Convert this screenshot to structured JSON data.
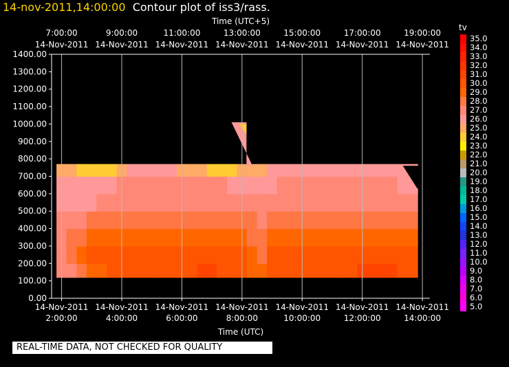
{
  "chart_data": {
    "type": "heatmap",
    "title_stamp": "14-nov-2011,14:00:00",
    "title": "Contour plot of iss3/rass.",
    "top_axis_label": "Time (UTC+5)",
    "xlabel": "Time (UTC)",
    "colorbar_label": "tv",
    "notice": "REAL-TIME DATA, NOT CHECKED FOR QUALITY",
    "ylim": [
      0,
      1400
    ],
    "xlim": [
      "14-Nov-2011 1:40:00",
      "14-Nov-2011 14:15:00"
    ],
    "y_ticks": [
      "0.00",
      "100.00",
      "200.00",
      "300.00",
      "400.00",
      "500.00",
      "600.00",
      "700.00",
      "800.00",
      "900.00",
      "1000.00",
      "1100.00",
      "1200.00",
      "1300.00",
      "1400.00"
    ],
    "bottom_ticks": [
      {
        "date": "14-Nov-2011",
        "time": "2:00:00"
      },
      {
        "date": "14-Nov-2011",
        "time": "4:00:00"
      },
      {
        "date": "14-Nov-2011",
        "time": "6:00:00"
      },
      {
        "date": "14-Nov-2011",
        "time": "8:00:00"
      },
      {
        "date": "14-Nov-2011",
        "time": "10:00:00"
      },
      {
        "date": "14-Nov-2011",
        "time": "12:00:00"
      },
      {
        "date": "14-Nov-2011",
        "time": "14:00:00"
      }
    ],
    "top_ticks": [
      {
        "time": "7:00:00",
        "date": "14-Nov-2011"
      },
      {
        "time": "9:00:00",
        "date": "14-Nov-2011"
      },
      {
        "time": "11:00:00",
        "date": "14-Nov-2011"
      },
      {
        "time": "13:00:00",
        "date": "14-Nov-2011"
      },
      {
        "time": "15:00:00",
        "date": "14-Nov-2011"
      },
      {
        "time": "17:00:00",
        "date": "14-Nov-2011"
      },
      {
        "time": "19:00:00",
        "date": "14-Nov-2011"
      }
    ],
    "colorbar": {
      "values": [
        "35.0",
        "34.0",
        "33.0",
        "32.0",
        "31.0",
        "30.0",
        "29.0",
        "28.0",
        "27.0",
        "26.0",
        "25.0",
        "24.0",
        "23.0",
        "22.0",
        "21.0",
        "20.0",
        "19.0",
        "18.0",
        "17.0",
        "16.0",
        "15.0",
        "14.0",
        "13.0",
        "12.0",
        "11.0",
        "10.0",
        "9.0",
        "8.0",
        "7.0",
        "6.0",
        "5.0"
      ],
      "colors": [
        "#ff0000",
        "#ff1000",
        "#ff2200",
        "#ff3300",
        "#ff4400",
        "#ff5500",
        "#ff6600",
        "#ff7744",
        "#ff8877",
        "#ff9999",
        "#ffaa66",
        "#ffcc33",
        "#ffee00",
        "#cc9900",
        "#bb9966",
        "#bbbbbb",
        "#229988",
        "#00bb99",
        "#00ccaa",
        "#0099dd",
        "#0066ff",
        "#1144ff",
        "#2233dd",
        "#5522ff",
        "#7722ff",
        "#9911ff",
        "#bb00ff",
        "#dd00ff",
        "#ee00ee",
        "#ff00dd",
        "#ff00ff"
      ]
    },
    "field": {
      "times_h": [
        2.0,
        2.33,
        2.67,
        3.0,
        3.33,
        3.67,
        4.0,
        4.33,
        4.67,
        5.0,
        5.33,
        5.67,
        6.0,
        6.33,
        6.67,
        7.0,
        7.33,
        7.67,
        8.0,
        8.33,
        8.67,
        9.0,
        9.33,
        9.67,
        10.0,
        10.33,
        10.67,
        11.0,
        11.33,
        11.67,
        12.0,
        12.33,
        12.67,
        13.0,
        13.33,
        13.67
      ],
      "heights": [
        150,
        250,
        350,
        450,
        550,
        650,
        750
      ],
      "tv": [
        [
          27,
          27,
          26.5,
          26.5,
          25.5,
          25.5,
          24.8
        ],
        [
          27,
          27.5,
          27.5,
          26.8,
          26,
          25.5,
          24.5
        ],
        [
          28,
          28.5,
          27.8,
          27,
          26,
          25.5,
          24
        ],
        [
          29,
          29.5,
          28.5,
          27.5,
          26.2,
          25.5,
          24
        ],
        [
          29,
          29.5,
          28.5,
          27.5,
          26.5,
          25.8,
          23.5
        ],
        [
          29.5,
          29.5,
          28.8,
          27.8,
          26.8,
          26,
          24
        ],
        [
          29.5,
          29.5,
          29,
          28,
          27,
          26.5,
          24.8
        ],
        [
          29.5,
          29.5,
          29,
          28,
          27,
          26.5,
          25.5
        ],
        [
          29.5,
          29.8,
          29,
          28.2,
          27.2,
          26.8,
          25.5
        ],
        [
          29.5,
          29.8,
          29.2,
          28.2,
          27.2,
          26.8,
          25.5
        ],
        [
          29.8,
          30,
          29.2,
          28.3,
          27.3,
          26.8,
          25.5
        ],
        [
          29.8,
          30,
          29.3,
          28.3,
          27.3,
          26.8,
          25.5
        ],
        [
          29.8,
          30,
          29.3,
          28.4,
          27.4,
          27,
          25.2
        ],
        [
          30.2,
          30,
          29.3,
          28.4,
          27.4,
          26.8,
          24.8
        ],
        [
          30.5,
          30,
          29.3,
          28.4,
          27.4,
          26.8,
          24.5
        ],
        [
          30.5,
          30,
          29.3,
          28.4,
          27.4,
          26.8,
          24.2
        ],
        [
          30,
          30,
          29.3,
          28.4,
          27.4,
          26.5,
          24
        ],
        [
          30,
          30,
          29.2,
          28.3,
          27.2,
          26.2,
          23.5
        ],
        [
          29.5,
          29.5,
          28.8,
          28,
          27,
          26,
          24.5
        ],
        [
          29,
          28.5,
          28,
          27.5,
          26.8,
          26,
          25
        ],
        [
          28.5,
          28.2,
          27.8,
          27.2,
          26.8,
          26,
          25.2
        ],
        [
          29.8,
          29.5,
          28.8,
          28,
          27,
          26.2,
          25.5
        ],
        [
          30,
          29.8,
          29,
          28.2,
          27.2,
          26.5,
          25.5
        ],
        [
          30.2,
          30,
          29.2,
          28.3,
          27.3,
          26.6,
          25.5
        ],
        [
          30.2,
          30,
          29.3,
          28.4,
          27.4,
          26.6,
          25.5
        ],
        [
          30.2,
          30,
          29.3,
          28.4,
          27.4,
          26.6,
          25.5
        ],
        [
          30.2,
          30,
          29.3,
          28.4,
          27.4,
          26.6,
          25.5
        ],
        [
          30.3,
          30,
          29.3,
          28.4,
          27.4,
          26.6,
          25.5
        ],
        [
          30.3,
          30.2,
          29.3,
          28.4,
          27.4,
          26.6,
          25.5
        ],
        [
          30.3,
          30.2,
          29.4,
          28.4,
          27.4,
          26.6,
          25.5
        ],
        [
          30.5,
          30.4,
          29.4,
          28.4,
          27.4,
          26.6,
          25.5
        ],
        [
          30.5,
          30.4,
          29.4,
          28.4,
          27.4,
          26.6,
          25.5
        ],
        [
          30.5,
          30.3,
          29.4,
          28.4,
          27.3,
          26.5,
          25.5
        ],
        [
          30.5,
          30.2,
          29.3,
          28.4,
          27.3,
          26.5,
          25.5
        ],
        [
          30.3,
          30,
          29.2,
          28.2,
          27.2,
          26.4,
          25.5
        ],
        [
          30.2,
          30,
          29.1,
          28.1,
          27.1,
          26.4,
          25.5
        ]
      ]
    }
  }
}
